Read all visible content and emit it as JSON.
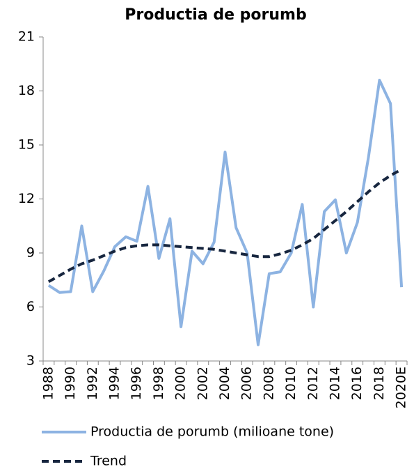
{
  "chart_data": {
    "type": "line",
    "title": "Productia de porumb",
    "categories": [
      "1988",
      null,
      "1990",
      null,
      "1992",
      null,
      "1994",
      null,
      "1996",
      null,
      "1998",
      null,
      "2000",
      null,
      "2002",
      null,
      "2004",
      null,
      "2006",
      null,
      "2008",
      null,
      "2010",
      null,
      "2012",
      null,
      "2014",
      null,
      "2016",
      null,
      "2018",
      null,
      "2020E"
    ],
    "series": [
      {
        "name": "Productia de porumb (milioane tone)",
        "color": "#8db3e2",
        "dashed": false,
        "values": [
          7.2,
          6.8,
          6.85,
          10.5,
          6.85,
          8.0,
          9.35,
          9.9,
          9.65,
          12.7,
          8.7,
          10.9,
          4.9,
          9.1,
          8.4,
          9.6,
          14.6,
          10.4,
          9.0,
          3.9,
          7.85,
          7.95,
          9.0,
          11.7,
          6.0,
          11.3,
          11.95,
          9.0,
          10.7,
          14.3,
          18.6,
          17.3,
          7.1
        ]
      },
      {
        "name": "Trend",
        "color": "#17263f",
        "dashed": true,
        "values": [
          7.4,
          7.75,
          8.1,
          8.4,
          8.6,
          8.85,
          9.1,
          9.3,
          9.4,
          9.45,
          9.45,
          9.4,
          9.35,
          9.3,
          9.25,
          9.2,
          9.1,
          9.0,
          8.9,
          8.8,
          8.8,
          8.95,
          9.15,
          9.45,
          9.8,
          10.3,
          10.8,
          11.3,
          11.85,
          12.4,
          12.9,
          13.3,
          13.65
        ]
      }
    ],
    "ylim": [
      3,
      21
    ],
    "yticks": [
      3,
      6,
      9,
      12,
      15,
      18,
      21
    ],
    "grid": false
  }
}
